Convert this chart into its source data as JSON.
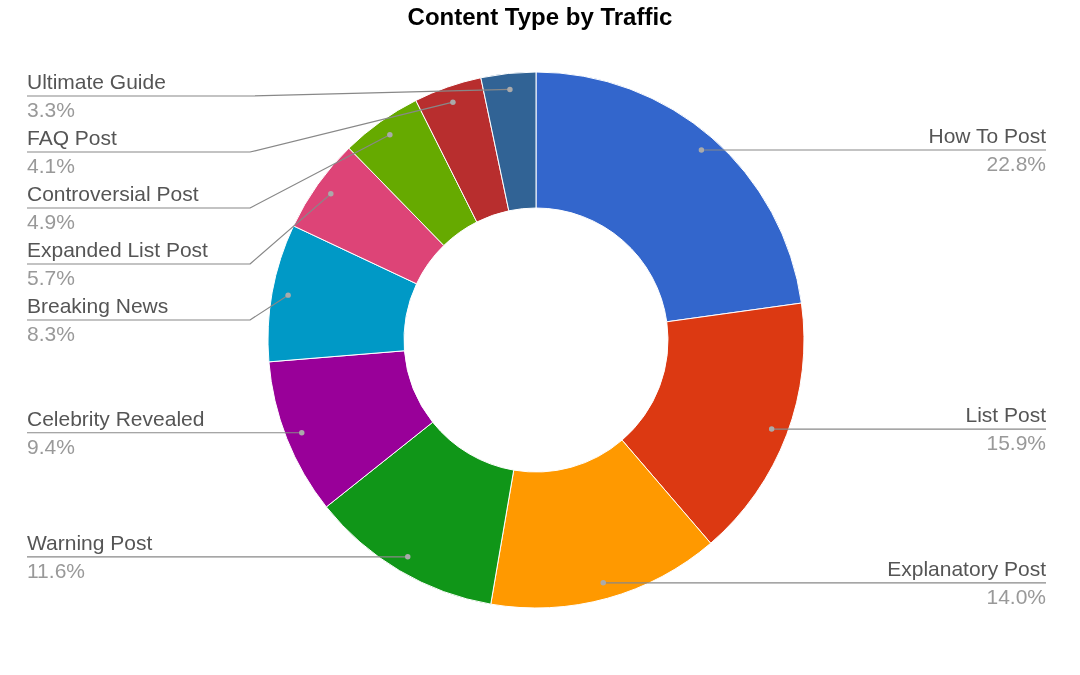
{
  "chart_data": {
    "type": "donut",
    "title": "Content Type by Traffic",
    "categories": [
      "How To Post",
      "List Post",
      "Explanatory Post",
      "Warning Post",
      "Celebrity Revealed",
      "Breaking News",
      "Expanded List Post",
      "Controversial Post",
      "FAQ Post",
      "Ultimate Guide"
    ],
    "values": [
      22.8,
      15.9,
      14.0,
      11.6,
      9.4,
      8.3,
      5.7,
      4.9,
      4.1,
      3.3
    ],
    "value_labels": [
      "22.8%",
      "15.9%",
      "14.0%",
      "11.6%",
      "9.4%",
      "8.3%",
      "5.7%",
      "4.9%",
      "4.1%",
      "3.3%"
    ],
    "colors": [
      "#3366cc",
      "#dc3912",
      "#ff9900",
      "#109618",
      "#990099",
      "#0099c6",
      "#dd4477",
      "#66aa00",
      "#b82e2e",
      "#316395"
    ]
  }
}
